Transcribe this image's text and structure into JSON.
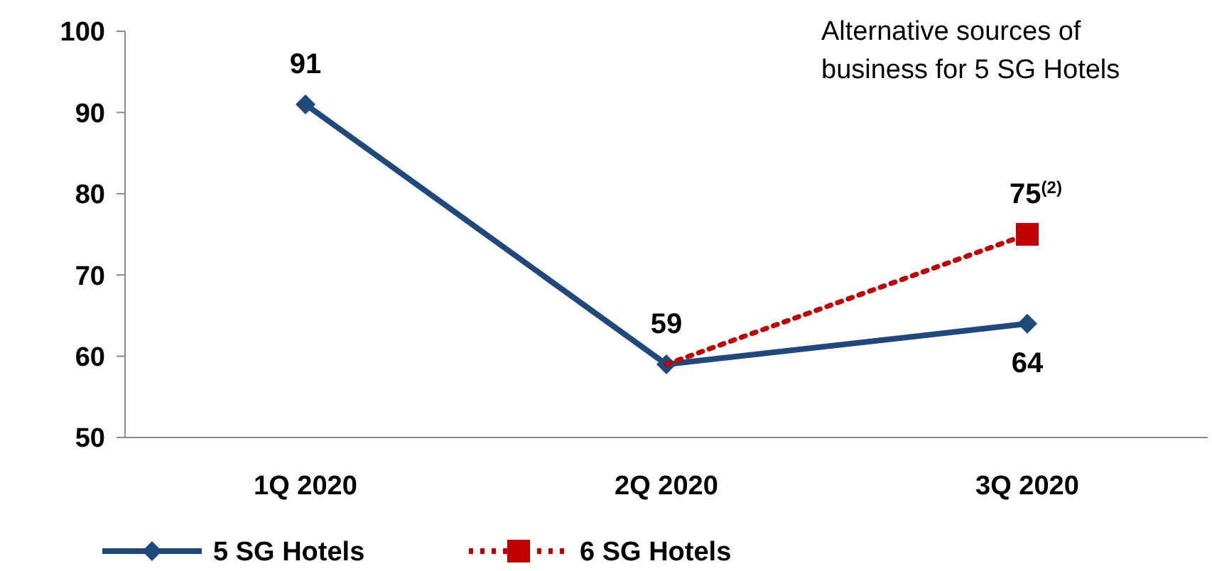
{
  "chart_data": {
    "type": "line",
    "categories": [
      "1Q 2020",
      "2Q 2020",
      "3Q 2020"
    ],
    "series": [
      {
        "name": "5 SG Hotels",
        "color": "#1f497d",
        "values": [
          91,
          59,
          64
        ],
        "marker": "diamond",
        "line_style": "solid",
        "value_labels": [
          "91",
          "59",
          "64"
        ]
      },
      {
        "name": "6 SG Hotels",
        "color": "#c00000",
        "values": [
          null,
          59,
          75
        ],
        "marker": "square",
        "line_style": "dotted",
        "value_labels": [
          null,
          null,
          "75$^{(2)}$"
        ]
      }
    ],
    "ylim": [
      50,
      100
    ],
    "yticks": [
      50,
      60,
      70,
      80,
      90,
      100
    ],
    "grid": false,
    "legend": "bottom",
    "annotations": [
      "Alternative sources of business for 5 SG Hotels"
    ]
  }
}
